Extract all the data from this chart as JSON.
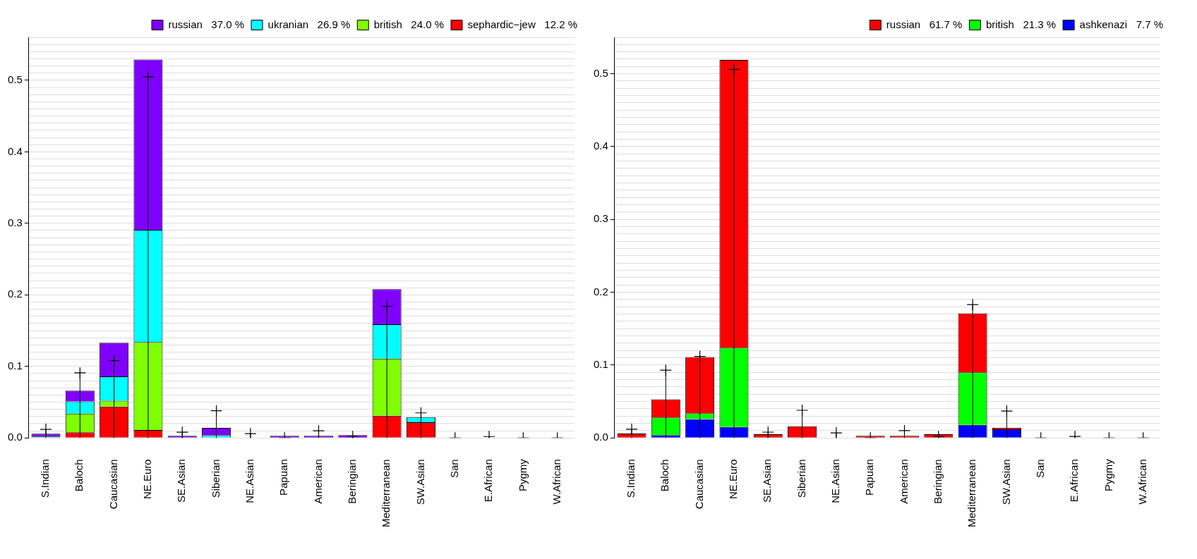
{
  "chart_data": [
    {
      "type": "bar",
      "stacked": true,
      "grid": "y",
      "legend": "top right",
      "categories": [
        "S.Indian",
        "Baloch",
        "Caucasian",
        "NE.Euro",
        "SE.Asian",
        "Siberian",
        "NE.Asian",
        "Papuan",
        "American",
        "Beringian",
        "Mediterranean",
        "SW.Asian",
        "San",
        "E.African",
        "Pygmy",
        "W.African"
      ],
      "series": [
        {
          "name": "sephardic−jew   12.2 %",
          "color": "#ff0000",
          "values": [
            0.0,
            0.008,
            0.044,
            0.011,
            0.0,
            0.0,
            0.0,
            0.0,
            0.0,
            0.0,
            0.031,
            0.022,
            0.0,
            0.0,
            0.0,
            0.0
          ]
        },
        {
          "name": "british   24.0 %",
          "color": "#80ff00",
          "values": [
            0.0,
            0.026,
            0.008,
            0.123,
            0.0,
            0.0,
            0.0,
            0.0,
            0.0,
            0.0,
            0.08,
            0.0,
            0.0,
            0.0,
            0.0,
            0.0
          ]
        },
        {
          "name": "ukranian   26.9 %",
          "color": "#00ffff",
          "values": [
            0.002,
            0.017,
            0.034,
            0.157,
            null,
            0.004,
            0.0,
            0.0,
            0.0,
            0.0,
            0.048,
            0.007,
            0.0,
            0.0,
            0.0,
            0.0
          ]
        },
        {
          "name": "russian   37.0 %",
          "color": "#8000ff",
          "values": [
            0.004,
            0.015,
            0.047,
            0.238,
            0.003,
            0.01,
            0.0,
            0.003,
            0.003,
            0.004,
            0.049,
            null,
            0.0,
            null,
            0.0,
            0.0
          ]
        },
        {
          "type": "lollipop",
          "marker": "cross",
          "color": "#000000",
          "values": [
            0.012,
            0.091,
            0.108,
            0.505,
            0.008,
            0.038,
            0.006,
            0.0,
            0.01,
            0.002,
            0.184,
            0.035,
            0.0,
            0.002,
            0.0,
            0.0
          ]
        }
      ],
      "ylim": [
        0,
        0.56
      ],
      "yticks": [
        {
          "value": 0,
          "label": "0.0"
        },
        {
          "value": 0.01,
          "label": null
        },
        {
          "value": 0.02,
          "label": null
        },
        {
          "value": 0.03,
          "label": null
        },
        {
          "value": 0.04,
          "label": null
        },
        {
          "value": 0.05,
          "label": null
        },
        {
          "value": 0.06,
          "label": null
        },
        {
          "value": 0.07,
          "label": null
        },
        {
          "value": 0.08,
          "label": null
        },
        {
          "value": 0.09,
          "label": null
        },
        0.1,
        {
          "value": 0.11,
          "label": null
        },
        {
          "value": 0.12,
          "label": null
        },
        {
          "value": 0.13,
          "label": null
        },
        {
          "value": 0.14,
          "label": null
        },
        {
          "value": 0.15,
          "label": null
        },
        {
          "value": 0.16,
          "label": null
        },
        {
          "value": 0.17,
          "label": null
        },
        {
          "value": 0.18,
          "label": null
        },
        {
          "value": 0.19,
          "label": null
        },
        0.2,
        {
          "value": 0.21,
          "label": null
        },
        {
          "value": 0.22,
          "label": null
        },
        {
          "value": 0.23,
          "label": null
        },
        {
          "value": 0.24,
          "label": null
        },
        {
          "value": 0.25,
          "label": null
        },
        {
          "value": 0.26,
          "label": null
        },
        {
          "value": 0.27,
          "label": null
        },
        {
          "value": 0.28,
          "label": null
        },
        {
          "value": 0.29,
          "label": null
        },
        0.3,
        {
          "value": 0.31,
          "label": null
        },
        {
          "value": 0.32,
          "label": null
        },
        {
          "value": 0.33,
          "label": null
        },
        {
          "value": 0.34,
          "label": null
        },
        {
          "value": 0.35,
          "label": null
        },
        {
          "value": 0.36,
          "label": null
        },
        {
          "value": 0.37,
          "label": null
        },
        {
          "value": 0.38,
          "label": null
        },
        {
          "value": 0.39,
          "label": null
        },
        0.4,
        {
          "value": 0.41,
          "label": null
        },
        {
          "value": 0.42,
          "label": null
        },
        {
          "value": 0.43,
          "label": null
        },
        {
          "value": 0.44,
          "label": null
        },
        {
          "value": 0.45,
          "label": null
        },
        {
          "value": 0.46,
          "label": null
        },
        {
          "value": 0.47,
          "label": null
        },
        {
          "value": 0.48,
          "label": null
        },
        {
          "value": 0.49,
          "label": null
        },
        0.5,
        {
          "value": 0.51,
          "label": null
        },
        {
          "value": 0.52,
          "label": null
        },
        {
          "value": 0.53,
          "label": null
        },
        {
          "value": 0.54,
          "label": null
        },
        {
          "value": 0.55,
          "label": null
        },
        {
          "value": 0.56,
          "label": null
        }
      ]
    },
    {
      "type": "bar",
      "stacked": true,
      "grid": "y",
      "legend": "top right",
      "categories": [
        "S.Indian",
        "Baloch",
        "Caucasian",
        "NE.Euro",
        "SE.Asian",
        "Siberian",
        "NE.Asian",
        "Papuan",
        "American",
        "Beringian",
        "Mediterranean",
        "SW.Asian",
        "San",
        "E.African",
        "Pygmy",
        "W.African"
      ],
      "series": [
        {
          "name": "ashkenazi   7.7 %",
          "color": "#0000ff",
          "values": [
            0.0,
            0.004,
            0.026,
            0.015,
            0.0,
            0.0,
            0.0,
            0.0,
            0.0,
            0.0,
            0.018,
            0.012,
            0.0,
            0.0,
            0.0,
            0.0
          ]
        },
        {
          "name": "british   21.3 %",
          "color": "#00ff00",
          "values": [
            0.0,
            0.024,
            0.008,
            0.109,
            0.0,
            0.0,
            0.0,
            0.0,
            0.0,
            0.0,
            0.072,
            0.0,
            0.0,
            0.0,
            0.0,
            0.0
          ]
        },
        {
          "name": "russian   61.7 %",
          "color": "#ff0000",
          "values": [
            0.006,
            0.025,
            0.077,
            0.395,
            0.005,
            0.016,
            0.0,
            0.003,
            0.003,
            0.005,
            0.081,
            0.002,
            0.0,
            0.0,
            0.0,
            0.0
          ]
        },
        {
          "type": "lollipop",
          "marker": "cross",
          "color": "#000000",
          "values": [
            0.012,
            0.093,
            0.112,
            0.506,
            0.008,
            0.038,
            0.007,
            0.0,
            0.01,
            0.002,
            0.183,
            0.037,
            0.0,
            0.002,
            0.0,
            0.0
          ]
        }
      ],
      "ylim": [
        0,
        0.55
      ],
      "yticks": [
        {
          "value": 0,
          "label": "0.0"
        },
        {
          "value": 0.01,
          "label": null
        },
        {
          "value": 0.02,
          "label": null
        },
        {
          "value": 0.03,
          "label": null
        },
        {
          "value": 0.04,
          "label": null
        },
        {
          "value": 0.05,
          "label": null
        },
        {
          "value": 0.06,
          "label": null
        },
        {
          "value": 0.07,
          "label": null
        },
        {
          "value": 0.08,
          "label": null
        },
        {
          "value": 0.09,
          "label": null
        },
        0.1,
        {
          "value": 0.11,
          "label": null
        },
        {
          "value": 0.12,
          "label": null
        },
        {
          "value": 0.13,
          "label": null
        },
        {
          "value": 0.14,
          "label": null
        },
        {
          "value": 0.15,
          "label": null
        },
        {
          "value": 0.16,
          "label": null
        },
        {
          "value": 0.17,
          "label": null
        },
        {
          "value": 0.18,
          "label": null
        },
        {
          "value": 0.19,
          "label": null
        },
        0.2,
        {
          "value": 0.21,
          "label": null
        },
        {
          "value": 0.22,
          "label": null
        },
        {
          "value": 0.23,
          "label": null
        },
        {
          "value": 0.24,
          "label": null
        },
        {
          "value": 0.25,
          "label": null
        },
        {
          "value": 0.26,
          "label": null
        },
        {
          "value": 0.27,
          "label": null
        },
        {
          "value": 0.28,
          "label": null
        },
        {
          "value": 0.29,
          "label": null
        },
        0.3,
        {
          "value": 0.31,
          "label": null
        },
        {
          "value": 0.32,
          "label": null
        },
        {
          "value": 0.33,
          "label": null
        },
        {
          "value": 0.34,
          "label": null
        },
        {
          "value": 0.35,
          "label": null
        },
        {
          "value": 0.36,
          "label": null
        },
        {
          "value": 0.37,
          "label": null
        },
        {
          "value": 0.38,
          "label": null
        },
        {
          "value": 0.39,
          "label": null
        },
        0.4,
        {
          "value": 0.41,
          "label": null
        },
        {
          "value": 0.42,
          "label": null
        },
        {
          "value": 0.43,
          "label": null
        },
        {
          "value": 0.44,
          "label": null
        },
        {
          "value": 0.45,
          "label": null
        },
        {
          "value": 0.46,
          "label": null
        },
        {
          "value": 0.47,
          "label": null
        },
        {
          "value": 0.48,
          "label": null
        },
        {
          "value": 0.49,
          "label": null
        },
        0.5,
        {
          "value": 0.51,
          "label": null
        },
        {
          "value": 0.52,
          "label": null
        },
        {
          "value": 0.53,
          "label": null
        },
        {
          "value": 0.54,
          "label": null
        },
        {
          "value": 0.55,
          "label": null
        }
      ]
    }
  ]
}
